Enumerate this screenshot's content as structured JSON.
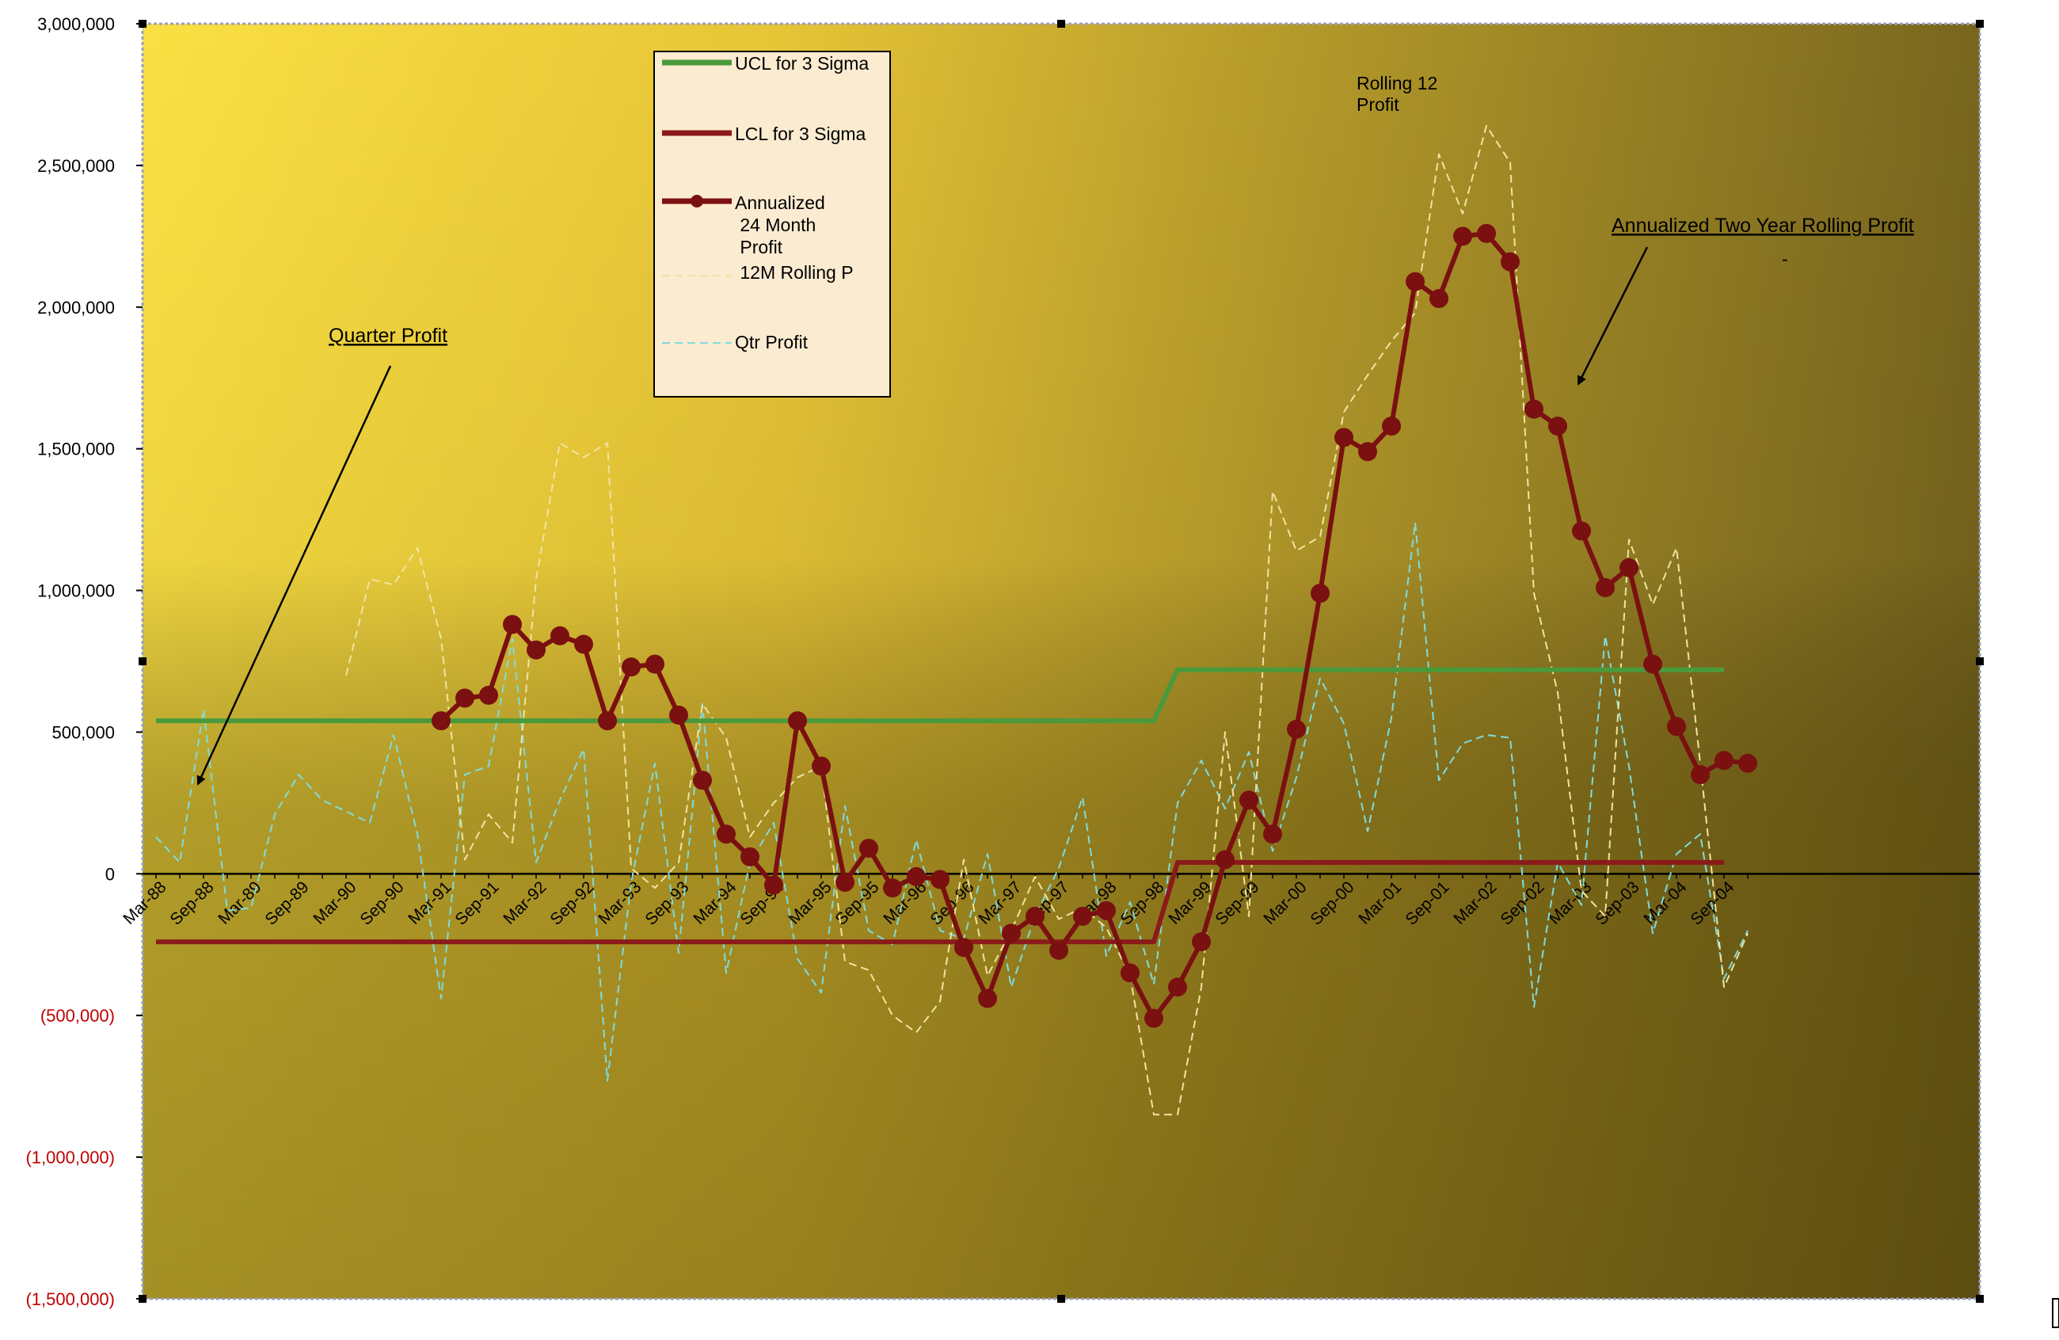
{
  "chart_data": {
    "type": "line",
    "title": "",
    "xlabel": "",
    "ylabel": "",
    "ylim": [
      -1500000,
      3000000
    ],
    "y_ticks": [
      3000000,
      2500000,
      2000000,
      1500000,
      1000000,
      500000,
      0,
      -500000,
      -1000000,
      -1500000
    ],
    "y_tick_labels": [
      "3,000,000",
      "2,500,000",
      "2,000,000",
      "1,500,000",
      "1,000,000",
      "500,000",
      "0",
      "(500,000)",
      "(1,000,000)",
      "(1,500,000)"
    ],
    "negative_label_color": "#c00000",
    "categories": [
      "Mar-88",
      "Jun-88",
      "Sep-88",
      "Dec-88",
      "Mar-89",
      "Jun-89",
      "Sep-89",
      "Dec-89",
      "Mar-90",
      "Jun-90",
      "Sep-90",
      "Dec-90",
      "Mar-91",
      "Jun-91",
      "Sep-91",
      "Dec-91",
      "Mar-92",
      "Jun-92",
      "Sep-92",
      "Dec-92",
      "Mar-93",
      "Jun-93",
      "Sep-93",
      "Dec-93",
      "Mar-94",
      "Jun-94",
      "Sep-94",
      "Dec-94",
      "Mar-95",
      "Jun-95",
      "Sep-95",
      "Dec-95",
      "Mar-96",
      "Jun-96",
      "Sep-96",
      "Dec-96",
      "Mar-97",
      "Jun-97",
      "Sep-97",
      "Dec-97",
      "Mar-98",
      "Jun-98",
      "Sep-98",
      "Dec-98",
      "Mar-99",
      "Jun-99",
      "Sep-99",
      "Dec-99",
      "Mar-00",
      "Jun-00",
      "Sep-00",
      "Dec-00",
      "Mar-01",
      "Jun-01",
      "Sep-01",
      "Dec-01",
      "Mar-02",
      "Jun-02",
      "Sep-02",
      "Dec-02",
      "Mar-03",
      "Jun-03",
      "Sep-03",
      "Dec-03",
      "Mar-04",
      "Jun-04",
      "Sep-04",
      "Dec-04"
    ],
    "x_tick_labels": [
      "Mar-88",
      "Sep-88",
      "Mar-89",
      "Sep-89",
      "Mar-90",
      "Sep-90",
      "Mar-91",
      "Sep-91",
      "Mar-92",
      "Sep-92",
      "Mar-93",
      "Sep-93",
      "Mar-94",
      "Sep-94",
      "Mar-95",
      "Sep-95",
      "Mar-96",
      "Sep-96",
      "Mar-97",
      "Sep-97",
      "Mar-98",
      "Sep-98",
      "Mar-99",
      "Sep-99",
      "Mar-00",
      "Sep-00",
      "Mar-01",
      "Sep-01",
      "Mar-02",
      "Sep-02",
      "Mar-03",
      "Sep-03",
      "Mar-04",
      "Sep-04"
    ],
    "series": [
      {
        "name": "UCL for 3 Sigma",
        "color": "#4a9a3c",
        "style": "solid",
        "values": [
          540000,
          540000,
          540000,
          540000,
          540000,
          540000,
          540000,
          540000,
          540000,
          540000,
          540000,
          540000,
          540000,
          540000,
          540000,
          540000,
          540000,
          540000,
          540000,
          540000,
          540000,
          540000,
          540000,
          540000,
          540000,
          540000,
          540000,
          540000,
          540000,
          540000,
          540000,
          540000,
          540000,
          540000,
          540000,
          540000,
          540000,
          540000,
          540000,
          540000,
          540000,
          540000,
          540000,
          720000,
          720000,
          720000,
          720000,
          720000,
          720000,
          720000,
          720000,
          720000,
          720000,
          720000,
          720000,
          720000,
          720000,
          720000,
          720000,
          720000,
          720000,
          720000,
          720000,
          720000,
          720000,
          720000,
          720000,
          null
        ]
      },
      {
        "name": "LCL for 3 Sigma",
        "color": "#8b1a1a",
        "style": "solid",
        "values": [
          -240000,
          -240000,
          -240000,
          -240000,
          -240000,
          -240000,
          -240000,
          -240000,
          -240000,
          -240000,
          -240000,
          -240000,
          -240000,
          -240000,
          -240000,
          -240000,
          -240000,
          -240000,
          -240000,
          -240000,
          -240000,
          -240000,
          -240000,
          -240000,
          -240000,
          -240000,
          -240000,
          -240000,
          -240000,
          -240000,
          -240000,
          -240000,
          -240000,
          -240000,
          -240000,
          -240000,
          -240000,
          -240000,
          -240000,
          -240000,
          -240000,
          -240000,
          -240000,
          40000,
          40000,
          40000,
          40000,
          40000,
          40000,
          40000,
          40000,
          40000,
          40000,
          40000,
          40000,
          40000,
          40000,
          40000,
          40000,
          40000,
          40000,
          40000,
          40000,
          40000,
          40000,
          40000,
          40000,
          null
        ]
      },
      {
        "name": "Annualized 24 Month Profit",
        "color": "#7a1010",
        "style": "solid-markers",
        "values": [
          null,
          null,
          null,
          null,
          null,
          null,
          null,
          null,
          null,
          null,
          null,
          null,
          540000,
          620000,
          630000,
          880000,
          790000,
          840000,
          810000,
          540000,
          730000,
          740000,
          560000,
          330000,
          140000,
          60000,
          -40000,
          540000,
          380000,
          -30000,
          90000,
          -50000,
          -10000,
          -20000,
          -260000,
          -440000,
          -210000,
          -150000,
          -270000,
          -150000,
          -130000,
          -350000,
          -510000,
          -400000,
          -240000,
          50000,
          260000,
          140000,
          510000,
          990000,
          1540000,
          1490000,
          1580000,
          2090000,
          2030000,
          2250000,
          2260000,
          2160000,
          1640000,
          1580000,
          1210000,
          1010000,
          1080000,
          740000,
          520000,
          350000,
          400000,
          390000
        ]
      },
      {
        "name": "12M Rolling P",
        "color": "#f0e4a0",
        "style": "dashed",
        "values": [
          null,
          null,
          null,
          null,
          null,
          null,
          null,
          null,
          700000,
          1040000,
          1020000,
          1150000,
          830000,
          50000,
          210000,
          110000,
          1040000,
          1520000,
          1470000,
          1520000,
          20000,
          -50000,
          40000,
          600000,
          480000,
          130000,
          250000,
          340000,
          380000,
          -310000,
          -340000,
          -500000,
          -560000,
          -450000,
          50000,
          -360000,
          -200000,
          -10000,
          -160000,
          -120000,
          -190000,
          -360000,
          -850000,
          -850000,
          -400000,
          500000,
          -150000,
          1350000,
          1140000,
          1190000,
          1630000,
          1760000,
          1880000,
          1980000,
          2540000,
          2330000,
          2640000,
          2510000,
          990000,
          640000,
          -60000,
          -150000,
          1180000,
          950000,
          1150000,
          390000,
          -400000,
          -210000
        ]
      },
      {
        "name": "Qtr Profit",
        "color": "#7fdcdc",
        "style": "dashed",
        "values": [
          130000,
          40000,
          580000,
          -130000,
          -120000,
          210000,
          350000,
          260000,
          220000,
          180000,
          490000,
          140000,
          -440000,
          350000,
          380000,
          830000,
          40000,
          260000,
          440000,
          -730000,
          -30000,
          390000,
          -280000,
          600000,
          -350000,
          40000,
          180000,
          -300000,
          -420000,
          240000,
          -200000,
          -250000,
          120000,
          -200000,
          -230000,
          70000,
          -400000,
          -150000,
          20000,
          270000,
          -290000,
          -100000,
          -390000,
          250000,
          400000,
          230000,
          430000,
          80000,
          340000,
          690000,
          530000,
          150000,
          550000,
          1240000,
          330000,
          460000,
          490000,
          480000,
          -470000,
          40000,
          -110000,
          840000,
          380000,
          -210000,
          70000,
          140000,
          -370000,
          -200000
        ]
      }
    ],
    "legend": {
      "placement": "top-center",
      "items": [
        {
          "label": "UCL for 3 Sigma",
          "color": "#4a9a3c",
          "style": "solid"
        },
        {
          "label": "LCL for 3 Sigma",
          "color": "#8b1a1a",
          "style": "solid"
        },
        {
          "label": "Annualized\n 24 Month\n Profit",
          "color": "#7a1010",
          "style": "solid-markers"
        },
        {
          "label": " 12M Rolling P",
          "color": "#f0e4a0",
          "style": "dashed"
        },
        {
          "label": "Qtr Profit",
          "color": "#7fdcdc",
          "style": "dashed"
        }
      ]
    },
    "annotations": [
      {
        "id": "quarter-profit",
        "text": "Quarter Profit",
        "underline": true
      },
      {
        "id": "rolling-12",
        "text": "Rolling 12\nProfit",
        "underline": false
      },
      {
        "id": "annualized-two-year",
        "text": "Annualized Two Year Rolling Profit",
        "underline": true
      },
      {
        "id": "dash-mark",
        "text": "-",
        "underline": false
      }
    ],
    "grid": false,
    "background": "gradient yellow to dark olive"
  }
}
